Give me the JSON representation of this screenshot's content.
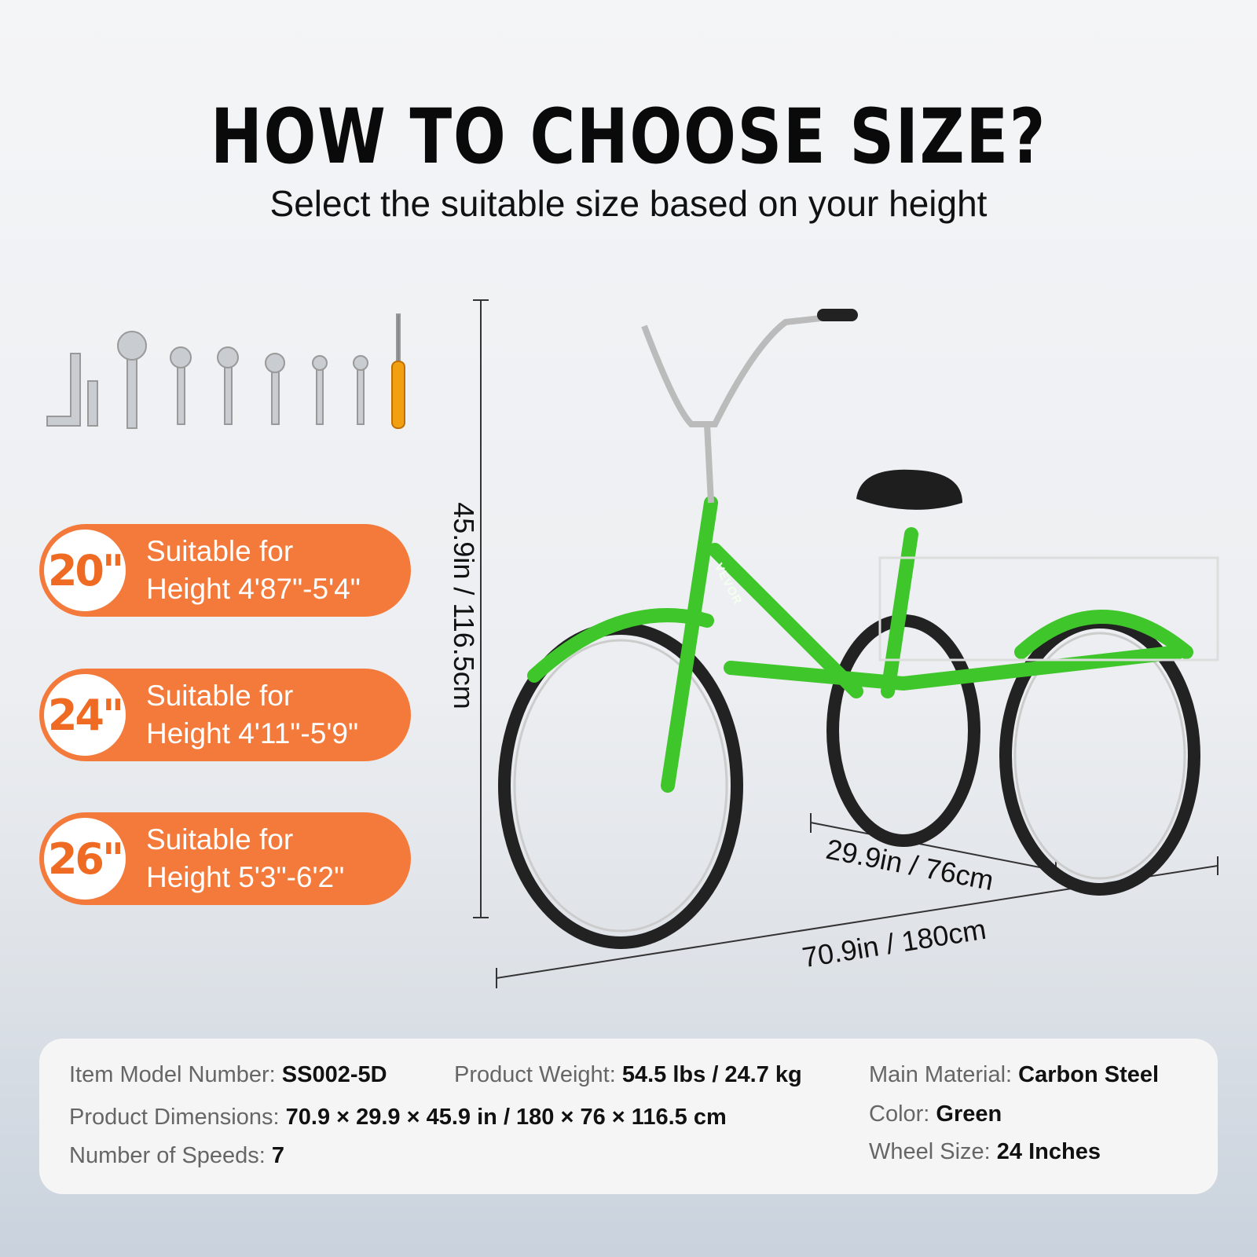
{
  "header": {
    "title": "HOW TO CHOOSE SIZE?",
    "subtitle": "Select the suitable size based on your height"
  },
  "sizes": [
    {
      "size": "20\"",
      "line1": "Suitable for",
      "line2": "Height 4'87\"-5'4\""
    },
    {
      "size": "24\"",
      "line1": "Suitable for",
      "line2": "Height 4'11\"-5'9\""
    },
    {
      "size": "26\"",
      "line1": "Suitable for",
      "line2": "Height 5'3\"-6'2\""
    }
  ],
  "dimensions": {
    "height": "45.9in / 116.5cm",
    "width": "29.9in / 76cm",
    "length": "70.9in / 180cm"
  },
  "product": {
    "brand": "VEVOR",
    "color_hex": "#3fc62b",
    "accent_hex": "#f47a3c"
  },
  "specs": [
    {
      "label": "Item Model Number: ",
      "value": "SS002-5D"
    },
    {
      "label": "Product Weight: ",
      "value": "54.5 lbs / 24.7 kg"
    },
    {
      "label": "Main Material: ",
      "value": "Carbon Steel"
    },
    {
      "label": "Product Dimensions: ",
      "value": "70.9 × 29.9 × 45.9 in / 180 × 76 × 116.5 cm"
    },
    {
      "label": "Color: ",
      "value": "Green"
    },
    {
      "label": "Number of Speeds: ",
      "value": "7"
    },
    {
      "label": "Wheel Size: ",
      "value": "24 Inches"
    }
  ]
}
